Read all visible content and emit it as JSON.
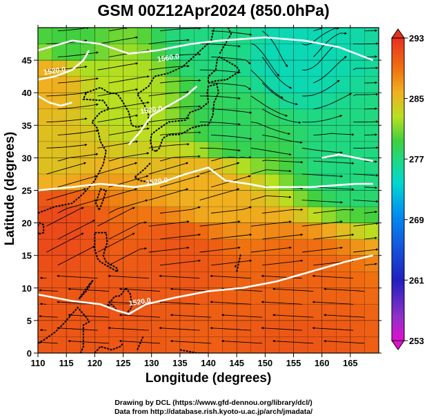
{
  "title": "GSM 00Z12Apr2024 (850.0hPa)",
  "credits": {
    "line1": "Drawing by DCL (https://www.gfd-dennou.org/library/dcl/)",
    "line2": "Data from http://database.rish.kyoto-u.ac.jp/arch/jmadata/"
  },
  "chart_data": {
    "type": "heatmap",
    "title": "GSM 00Z12Apr2024 (850.0hPa)",
    "xlabel": "Longitude (degrees)",
    "ylabel": "Latitude  (degrees)",
    "xlim": [
      110,
      170
    ],
    "ylim": [
      0,
      50
    ],
    "x_ticks": [
      110,
      115,
      120,
      125,
      130,
      135,
      140,
      145,
      150,
      155,
      160,
      165
    ],
    "y_ticks": [
      0,
      5,
      10,
      15,
      20,
      25,
      30,
      35,
      40,
      45
    ],
    "grid": true,
    "colorbar": {
      "ticks": [
        253,
        261,
        269,
        277,
        285,
        293
      ],
      "range": [
        253,
        293
      ],
      "colors": [
        "#e010d0",
        "#2020c0",
        "#0090f0",
        "#00e0c0",
        "#40d040",
        "#c0e020",
        "#f0b020",
        "#f06010",
        "#e83020"
      ]
    },
    "contour_labels": [
      {
        "text": "1560.0",
        "lat": 45,
        "lon": 133
      },
      {
        "text": "1520.0",
        "lat": 43,
        "lon": 113
      },
      {
        "text": "1520.0",
        "lat": 37,
        "lon": 130
      },
      {
        "text": "1520.0",
        "lat": 26,
        "lon": 131
      },
      {
        "text": "1520.0",
        "lat": 7.5,
        "lon": 128
      }
    ],
    "height_contours": [
      {
        "label": "1560.0",
        "lon": [
          110,
          116,
          121,
          126,
          131,
          137,
          142,
          150,
          157,
          163,
          169
        ],
        "lat": [
          46.5,
          48.0,
          47.5,
          46.0,
          46.5,
          47.5,
          48.0,
          48.5,
          48.0,
          47.0,
          45.0
        ]
      },
      {
        "label": "1520.0",
        "lon": [
          110,
          113,
          116,
          118,
          119
        ],
        "lat": [
          42.0,
          42.5,
          43.5,
          45.0,
          46.5
        ]
      },
      {
        "label": "1520.0",
        "lon": [
          126,
          128,
          130,
          133,
          136,
          138
        ],
        "lat": [
          32.0,
          34.0,
          36.5,
          38.0,
          39.5,
          41.0
        ]
      },
      {
        "label": "1520.0",
        "lon": [
          110,
          116,
          121,
          127,
          131,
          136,
          140,
          143,
          147,
          150,
          158,
          166,
          169
        ],
        "lat": [
          25.0,
          25.5,
          26.0,
          25.5,
          26.0,
          27.5,
          28.5,
          26.5,
          26.0,
          25.5,
          25.5,
          26.0,
          26.0
        ]
      },
      {
        "label": "1520.0",
        "lon": [
          110,
          116,
          121,
          124,
          126,
          129,
          134,
          140,
          146,
          152,
          158,
          164,
          169
        ],
        "lat": [
          9.0,
          8.0,
          7.5,
          6.5,
          6.0,
          7.5,
          8.5,
          9.5,
          10.0,
          11.0,
          12.5,
          14.0,
          15.0
        ]
      },
      {
        "label": "",
        "lon": [
          110,
          112,
          114,
          116
        ],
        "lat": [
          39.5,
          38.5,
          38.0,
          38.5
        ]
      },
      {
        "label": "",
        "lon": [
          160,
          163,
          166,
          169
        ],
        "lat": [
          30.0,
          30.5,
          30.0,
          29.5
        ]
      }
    ],
    "temperature_field": [
      {
        "lat": 48,
        "lon": 115,
        "value": 278
      },
      {
        "lat": 48,
        "lon": 140,
        "value": 276
      },
      {
        "lat": 45,
        "lon": 155,
        "value": 274
      },
      {
        "lat": 42,
        "lon": 112,
        "value": 284
      },
      {
        "lat": 40,
        "lon": 125,
        "value": 281
      },
      {
        "lat": 35,
        "lon": 145,
        "value": 277
      },
      {
        "lat": 30,
        "lon": 112,
        "value": 283
      },
      {
        "lat": 30,
        "lon": 165,
        "value": 276
      },
      {
        "lat": 25,
        "lon": 140,
        "value": 284
      },
      {
        "lat": 20,
        "lon": 112,
        "value": 291
      },
      {
        "lat": 15,
        "lon": 135,
        "value": 290
      },
      {
        "lat": 10,
        "lon": 155,
        "value": 289
      },
      {
        "lat": 5,
        "lon": 120,
        "value": 290
      },
      {
        "lat": 2,
        "lon": 155,
        "value": 290
      }
    ]
  }
}
